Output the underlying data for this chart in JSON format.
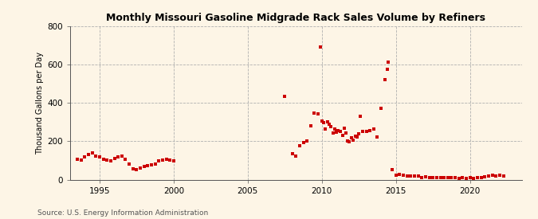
{
  "title": "Monthly Missouri Gasoline Midgrade Rack Sales Volume by Refiners",
  "ylabel": "Thousand Gallons per Day",
  "source": "Source: U.S. Energy Information Administration",
  "background_color": "#fdf5e6",
  "plot_bg_color": "#fdf5e6",
  "marker_color": "#cc0000",
  "ylim": [
    0,
    800
  ],
  "yticks": [
    0,
    200,
    400,
    600,
    800
  ],
  "xlim": [
    1993.0,
    2023.5
  ],
  "xticks": [
    1995,
    2000,
    2005,
    2010,
    2015,
    2020
  ],
  "data_points": [
    [
      1993.5,
      107
    ],
    [
      1993.75,
      102
    ],
    [
      1994.0,
      118
    ],
    [
      1994.25,
      132
    ],
    [
      1994.5,
      138
    ],
    [
      1994.75,
      122
    ],
    [
      1995.0,
      118
    ],
    [
      1995.25,
      108
    ],
    [
      1995.5,
      100
    ],
    [
      1995.75,
      98
    ],
    [
      1996.0,
      112
    ],
    [
      1996.25,
      118
    ],
    [
      1996.5,
      122
    ],
    [
      1996.75,
      108
    ],
    [
      1997.0,
      82
    ],
    [
      1997.25,
      57
    ],
    [
      1997.5,
      52
    ],
    [
      1997.75,
      62
    ],
    [
      1998.0,
      67
    ],
    [
      1998.25,
      72
    ],
    [
      1998.5,
      77
    ],
    [
      1998.75,
      82
    ],
    [
      1999.0,
      97
    ],
    [
      1999.25,
      102
    ],
    [
      1999.5,
      107
    ],
    [
      1999.75,
      102
    ],
    [
      2000.0,
      97
    ],
    [
      2007.5,
      435
    ],
    [
      2008.0,
      137
    ],
    [
      2008.25,
      122
    ],
    [
      2008.5,
      177
    ],
    [
      2008.75,
      192
    ],
    [
      2009.0,
      202
    ],
    [
      2009.25,
      282
    ],
    [
      2009.5,
      347
    ],
    [
      2009.75,
      342
    ],
    [
      2009.92,
      692
    ],
    [
      2010.0,
      307
    ],
    [
      2010.1,
      297
    ],
    [
      2010.25,
      262
    ],
    [
      2010.4,
      302
    ],
    [
      2010.5,
      287
    ],
    [
      2010.6,
      277
    ],
    [
      2010.75,
      242
    ],
    [
      2010.85,
      262
    ],
    [
      2011.0,
      247
    ],
    [
      2011.1,
      257
    ],
    [
      2011.25,
      252
    ],
    [
      2011.4,
      232
    ],
    [
      2011.5,
      267
    ],
    [
      2011.6,
      242
    ],
    [
      2011.75,
      202
    ],
    [
      2011.85,
      197
    ],
    [
      2012.0,
      217
    ],
    [
      2012.1,
      207
    ],
    [
      2012.25,
      227
    ],
    [
      2012.4,
      222
    ],
    [
      2012.5,
      237
    ],
    [
      2012.6,
      332
    ],
    [
      2012.75,
      252
    ],
    [
      2013.0,
      252
    ],
    [
      2013.25,
      257
    ],
    [
      2013.5,
      262
    ],
    [
      2013.75,
      222
    ],
    [
      2014.0,
      372
    ],
    [
      2014.25,
      522
    ],
    [
      2014.4,
      577
    ],
    [
      2014.5,
      612
    ],
    [
      2014.75,
      52
    ],
    [
      2015.0,
      22
    ],
    [
      2015.25,
      27
    ],
    [
      2015.5,
      22
    ],
    [
      2015.75,
      17
    ],
    [
      2016.0,
      17
    ],
    [
      2016.25,
      20
    ],
    [
      2016.5,
      17
    ],
    [
      2016.75,
      12
    ],
    [
      2017.0,
      14
    ],
    [
      2017.25,
      12
    ],
    [
      2017.5,
      12
    ],
    [
      2017.75,
      10
    ],
    [
      2018.0,
      12
    ],
    [
      2018.25,
      10
    ],
    [
      2018.5,
      12
    ],
    [
      2018.75,
      10
    ],
    [
      2019.0,
      10
    ],
    [
      2019.25,
      8
    ],
    [
      2019.5,
      10
    ],
    [
      2019.75,
      8
    ],
    [
      2020.0,
      10
    ],
    [
      2020.25,
      8
    ],
    [
      2020.5,
      10
    ],
    [
      2020.75,
      12
    ],
    [
      2021.0,
      14
    ],
    [
      2021.25,
      17
    ],
    [
      2021.5,
      22
    ],
    [
      2021.75,
      20
    ],
    [
      2022.0,
      22
    ],
    [
      2022.25,
      17
    ]
  ]
}
